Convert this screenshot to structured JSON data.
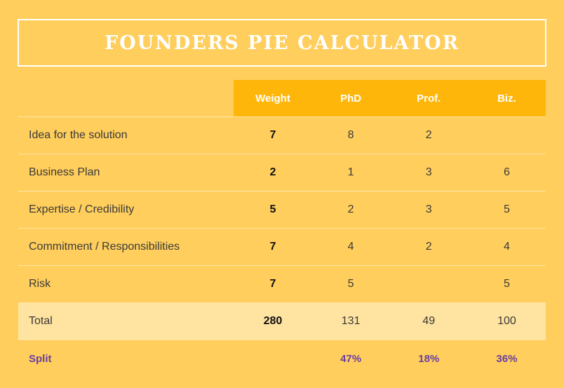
{
  "title": "FOUNDERS PIE CALCULATOR",
  "columns": {
    "weight": "Weight",
    "phd": "PhD",
    "prof": "Prof.",
    "biz": "Biz."
  },
  "rows": [
    {
      "label": "Idea for the solution",
      "weight": "7",
      "phd": "8",
      "prof": "2",
      "biz": ""
    },
    {
      "label": "Business Plan",
      "weight": "2",
      "phd": "1",
      "prof": "3",
      "biz": "6"
    },
    {
      "label": "Expertise / Credibility",
      "weight": "5",
      "phd": "2",
      "prof": "3",
      "biz": "5"
    },
    {
      "label": "Commitment / Responsibilities",
      "weight": "7",
      "phd": "4",
      "prof": "2",
      "biz": "4"
    },
    {
      "label": "Risk",
      "weight": "7",
      "phd": "5",
      "prof": "",
      "biz": "5"
    }
  ],
  "total": {
    "label": "Total",
    "weight": "280",
    "phd": "131",
    "prof": "49",
    "biz": "100"
  },
  "split": {
    "label": "Split",
    "phd": "47%",
    "prof": "18%",
    "biz": "36%"
  },
  "colors": {
    "background": "#ffce5c",
    "header": "#ffb60a",
    "total_row": "#ffe3a0",
    "split_text": "#6a3fa0"
  }
}
